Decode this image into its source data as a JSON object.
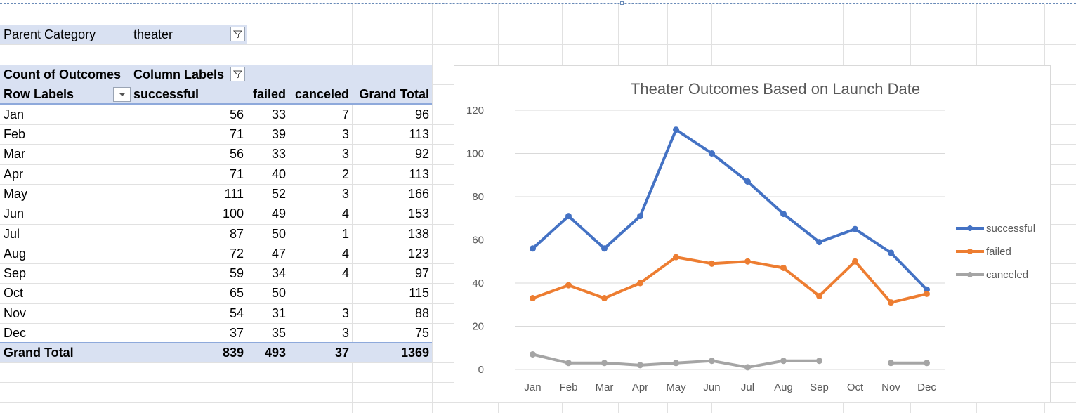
{
  "filter": {
    "label": "Parent Category",
    "value": "theater"
  },
  "pivot": {
    "corner_label": "Count of Outcomes",
    "column_labels": "Column Labels",
    "row_labels": "Row Labels",
    "headers": [
      "successful",
      "failed",
      "canceled",
      "Grand Total"
    ],
    "rows": [
      {
        "month": "Jan",
        "successful": "56",
        "failed": "33",
        "canceled": "7",
        "total": "96"
      },
      {
        "month": "Feb",
        "successful": "71",
        "failed": "39",
        "canceled": "3",
        "total": "113"
      },
      {
        "month": "Mar",
        "successful": "56",
        "failed": "33",
        "canceled": "3",
        "total": "92"
      },
      {
        "month": "Apr",
        "successful": "71",
        "failed": "40",
        "canceled": "2",
        "total": "113"
      },
      {
        "month": "May",
        "successful": "111",
        "failed": "52",
        "canceled": "3",
        "total": "166"
      },
      {
        "month": "Jun",
        "successful": "100",
        "failed": "49",
        "canceled": "4",
        "total": "153"
      },
      {
        "month": "Jul",
        "successful": "87",
        "failed": "50",
        "canceled": "1",
        "total": "138"
      },
      {
        "month": "Aug",
        "successful": "72",
        "failed": "47",
        "canceled": "4",
        "total": "123"
      },
      {
        "month": "Sep",
        "successful": "59",
        "failed": "34",
        "canceled": "4",
        "total": "97"
      },
      {
        "month": "Oct",
        "successful": "65",
        "failed": "50",
        "canceled": "",
        "total": "115"
      },
      {
        "month": "Nov",
        "successful": "54",
        "failed": "31",
        "canceled": "3",
        "total": "88"
      },
      {
        "month": "Dec",
        "successful": "37",
        "failed": "35",
        "canceled": "3",
        "total": "75"
      }
    ],
    "grand_total": {
      "label": "Grand Total",
      "successful": "839",
      "failed": "493",
      "canceled": "37",
      "total": "1369"
    }
  },
  "chart_data": {
    "type": "line",
    "title": "Theater Outcomes Based on Launch Date",
    "categories": [
      "Jan",
      "Feb",
      "Mar",
      "Apr",
      "May",
      "Jun",
      "Jul",
      "Aug",
      "Sep",
      "Oct",
      "Nov",
      "Dec"
    ],
    "series": [
      {
        "name": "successful",
        "color": "#4472c4",
        "values": [
          56,
          71,
          56,
          71,
          111,
          100,
          87,
          72,
          59,
          65,
          54,
          37
        ]
      },
      {
        "name": "failed",
        "color": "#ed7d31",
        "values": [
          33,
          39,
          33,
          40,
          52,
          49,
          50,
          47,
          34,
          50,
          31,
          35
        ]
      },
      {
        "name": "canceled",
        "color": "#a5a5a5",
        "values": [
          7,
          3,
          3,
          2,
          3,
          4,
          1,
          4,
          4,
          null,
          3,
          3
        ]
      }
    ],
    "ylim": [
      0,
      120
    ],
    "yticks": [
      "0",
      "20",
      "40",
      "60",
      "80",
      "100",
      "120"
    ],
    "grid": true,
    "legend_position": "right"
  }
}
